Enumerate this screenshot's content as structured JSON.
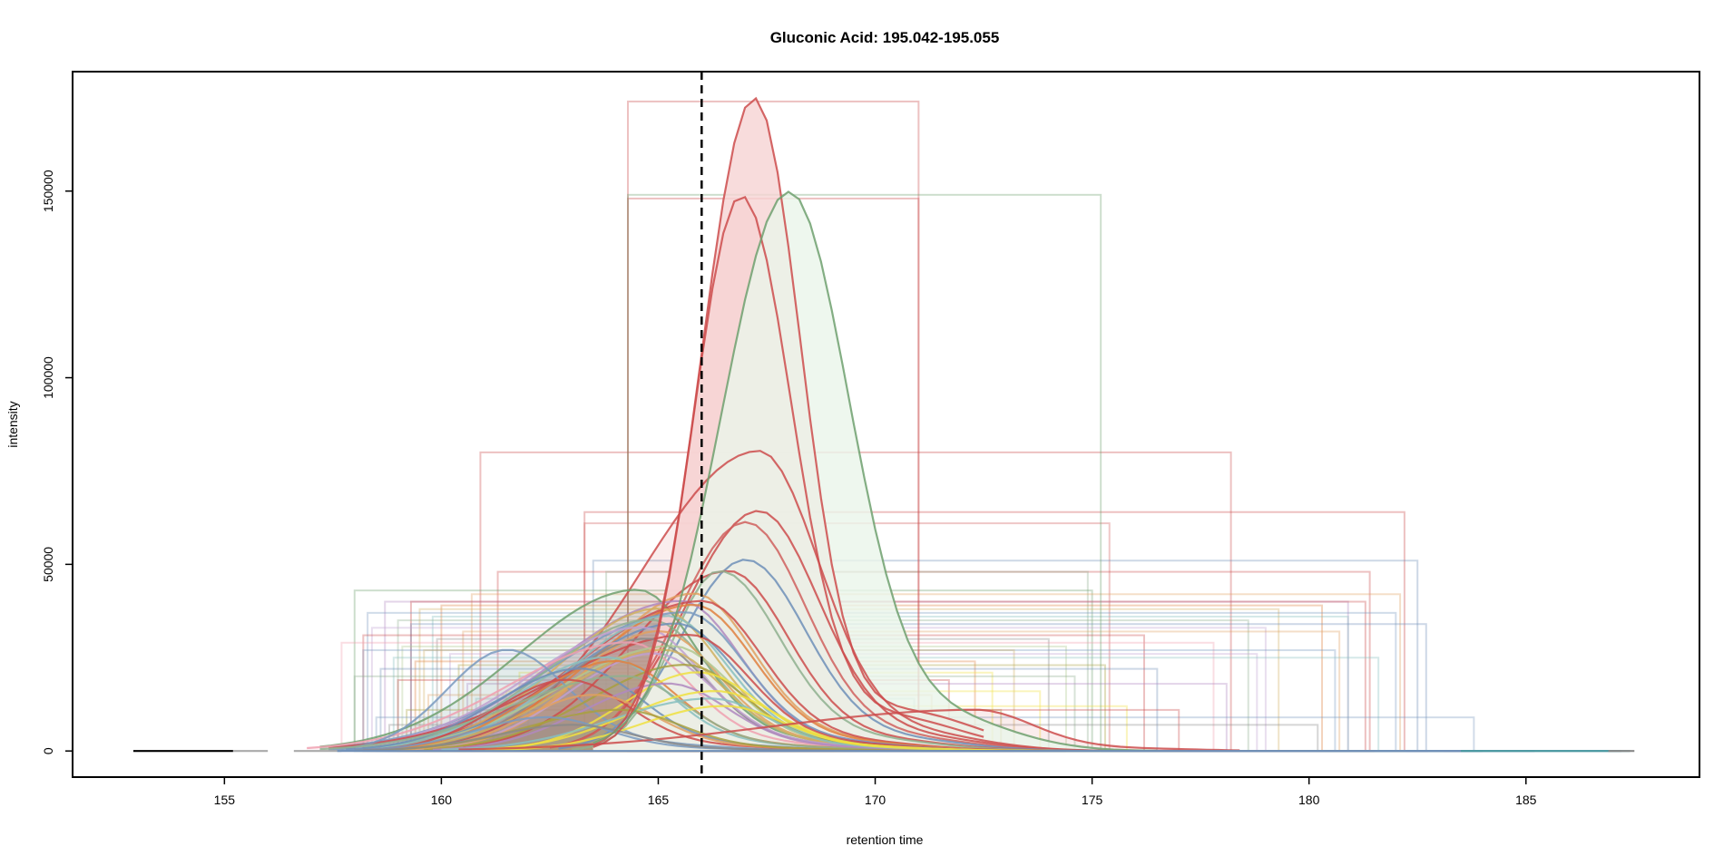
{
  "chart_data": {
    "type": "line",
    "title": "Gluconic Acid: 195.042-195.055",
    "xlabel": "retention time",
    "ylabel": "intensity",
    "xlim": [
      151.5,
      189
    ],
    "ylim": [
      -7000,
      182000
    ],
    "x_ticks": [
      155,
      160,
      165,
      170,
      175,
      180,
      185
    ],
    "y_ticks": [
      0,
      50000,
      100000,
      150000
    ],
    "x_tick_labels": [
      "155",
      "160",
      "165",
      "170",
      "175",
      "180",
      "185"
    ],
    "y_tick_labels": [
      "0",
      "50000",
      "100000",
      "150000"
    ],
    "reference_line": {
      "x": 166.0,
      "style": "dashed",
      "color": "#000000"
    },
    "grid": false,
    "legend": "none",
    "palette": [
      "#e41a1c",
      "#377eb8",
      "#4daf4a",
      "#984ea3",
      "#ff7f00",
      "#ffff33",
      "#a65628",
      "#f781bf",
      "#999999",
      "#66c2a5",
      "#8da0cb",
      "#b2df8a"
    ],
    "highlighted_peaks": [
      {
        "color": "#cc4c4c",
        "fill": "#f6d3d3",
        "apex_x": 167.2,
        "apex_y": 174000,
        "start_x": 164.3,
        "end_x": 171.0
      },
      {
        "color": "#cc4c4c",
        "fill": "#f6d3d3",
        "apex_x": 166.9,
        "apex_y": 148000,
        "start_x": 164.3,
        "end_x": 171.0
      },
      {
        "color": "#6fa06f",
        "fill": "#eaf5ea",
        "apex_x": 168.0,
        "apex_y": 149000,
        "start_x": 164.3,
        "end_x": 175.2
      }
    ],
    "background_traces": [
      {
        "color": "#cc4c4c",
        "apex_x": 167.3,
        "apex_y": 80000,
        "start_x": 160.9,
        "end_x": 178.2
      },
      {
        "color": "#cc4c4c",
        "apex_x": 167.3,
        "apex_y": 64000,
        "start_x": 163.3,
        "end_x": 182.2
      },
      {
        "color": "#d0605e",
        "apex_x": 167.0,
        "apex_y": 61000,
        "start_x": 163.3,
        "end_x": 175.4
      },
      {
        "color": "#6f8fb8",
        "apex_x": 167.0,
        "apex_y": 51000,
        "start_x": 163.5,
        "end_x": 182.5
      },
      {
        "color": "#cc4c4c",
        "apex_x": 166.6,
        "apex_y": 48000,
        "start_x": 161.3,
        "end_x": 181.4
      },
      {
        "color": "#8fb08f",
        "apex_x": 166.4,
        "apex_y": 48000,
        "start_x": 163.8,
        "end_x": 174.9
      },
      {
        "color": "#6fa06f",
        "apex_x": 164.5,
        "apex_y": 43000,
        "start_x": 158.0,
        "end_x": 175.0
      },
      {
        "color": "#e0a060",
        "apex_x": 165.8,
        "apex_y": 42000,
        "start_x": 160.7,
        "end_x": 182.1
      },
      {
        "color": "#b088c0",
        "apex_x": 165.5,
        "apex_y": 40000,
        "start_x": 158.7,
        "end_x": 180.9
      },
      {
        "color": "#cc4c4c",
        "apex_x": 166.0,
        "apex_y": 40000,
        "start_x": 159.3,
        "end_x": 181.3
      },
      {
        "color": "#e08040",
        "apex_x": 165.8,
        "apex_y": 39000,
        "start_x": 160.0,
        "end_x": 180.3
      },
      {
        "color": "#d0b060",
        "apex_x": 165.0,
        "apex_y": 38000,
        "start_x": 159.5,
        "end_x": 179.3
      },
      {
        "color": "#7a9ac0",
        "apex_x": 165.6,
        "apex_y": 37000,
        "start_x": 158.3,
        "end_x": 182.0
      },
      {
        "color": "#88c0c0",
        "apex_x": 165.2,
        "apex_y": 36000,
        "start_x": 159.8,
        "end_x": 180.9
      },
      {
        "color": "#90b090",
        "apex_x": 164.8,
        "apex_y": 35000,
        "start_x": 159.0,
        "end_x": 178.6
      },
      {
        "color": "#6f8fb8",
        "apex_x": 165.4,
        "apex_y": 34000,
        "start_x": 159.3,
        "end_x": 182.7
      },
      {
        "color": "#c0a0d0",
        "apex_x": 164.6,
        "apex_y": 33000,
        "start_x": 158.4,
        "end_x": 179.0
      },
      {
        "color": "#e0a060",
        "apex_x": 165.0,
        "apex_y": 32000,
        "start_x": 160.5,
        "end_x": 180.7
      },
      {
        "color": "#cc4c4c",
        "apex_x": 165.7,
        "apex_y": 31000,
        "start_x": 158.2,
        "end_x": 176.2
      },
      {
        "color": "#8a8a8a",
        "apex_x": 164.7,
        "apex_y": 30000,
        "start_x": 159.9,
        "end_x": 174.0
      },
      {
        "color": "#f0a0b0",
        "apex_x": 164.3,
        "apex_y": 29000,
        "start_x": 157.7,
        "end_x": 177.8
      },
      {
        "color": "#b0c890",
        "apex_x": 165.3,
        "apex_y": 28000,
        "start_x": 159.1,
        "end_x": 174.4
      },
      {
        "color": "#7a9ac0",
        "apex_x": 161.5,
        "apex_y": 27000,
        "start_x": 158.2,
        "end_x": 180.6
      },
      {
        "color": "#d0b060",
        "apex_x": 165.1,
        "apex_y": 27000,
        "start_x": 159.6,
        "end_x": 173.2
      },
      {
        "color": "#c0a0d0",
        "apex_x": 164.9,
        "apex_y": 26000,
        "start_x": 160.2,
        "end_x": 178.8
      },
      {
        "color": "#88c0c0",
        "apex_x": 163.8,
        "apex_y": 25000,
        "start_x": 158.9,
        "end_x": 181.6
      },
      {
        "color": "#e08040",
        "apex_x": 164.0,
        "apex_y": 24000,
        "start_x": 159.4,
        "end_x": 172.3
      },
      {
        "color": "#a8a040",
        "apex_x": 165.6,
        "apex_y": 23000,
        "start_x": 160.4,
        "end_x": 175.3
      },
      {
        "color": "#6f8fb8",
        "apex_x": 163.2,
        "apex_y": 22000,
        "start_x": 158.6,
        "end_x": 176.5
      },
      {
        "color": "#f0e040",
        "apex_x": 165.9,
        "apex_y": 21000,
        "start_x": 161.8,
        "end_x": 172.7
      },
      {
        "color": "#90b090",
        "apex_x": 164.2,
        "apex_y": 20000,
        "start_x": 158.0,
        "end_x": 174.6
      },
      {
        "color": "#cc4c4c",
        "apex_x": 162.9,
        "apex_y": 19000,
        "start_x": 159.0,
        "end_x": 171.7
      },
      {
        "color": "#b088c0",
        "apex_x": 165.2,
        "apex_y": 18000,
        "start_x": 160.6,
        "end_x": 178.1
      },
      {
        "color": "#f0e040",
        "apex_x": 166.3,
        "apex_y": 16000,
        "start_x": 161.5,
        "end_x": 173.8
      },
      {
        "color": "#e0a060",
        "apex_x": 163.5,
        "apex_y": 15000,
        "start_x": 159.7,
        "end_x": 171.3
      },
      {
        "color": "#88c0c0",
        "apex_x": 166.2,
        "apex_y": 14000,
        "start_x": 160.8,
        "end_x": 170.9
      },
      {
        "color": "#f0e040",
        "apex_x": 166.5,
        "apex_y": 12000,
        "start_x": 162.0,
        "end_x": 175.8
      },
      {
        "color": "#a8a040",
        "apex_x": 164.1,
        "apex_y": 11000,
        "start_x": 159.2,
        "end_x": 172.9
      },
      {
        "color": "#7a9ac0",
        "apex_x": 162.4,
        "apex_y": 9000,
        "start_x": 158.5,
        "end_x": 183.8
      },
      {
        "color": "#cc4c4c",
        "apex_x": 172.3,
        "apex_y": 11000,
        "start_x": 161.2,
        "end_x": 177.0
      },
      {
        "color": "#8a8a8a",
        "apex_x": 163.0,
        "apex_y": 7000,
        "start_x": 158.8,
        "end_x": 180.2
      }
    ]
  }
}
